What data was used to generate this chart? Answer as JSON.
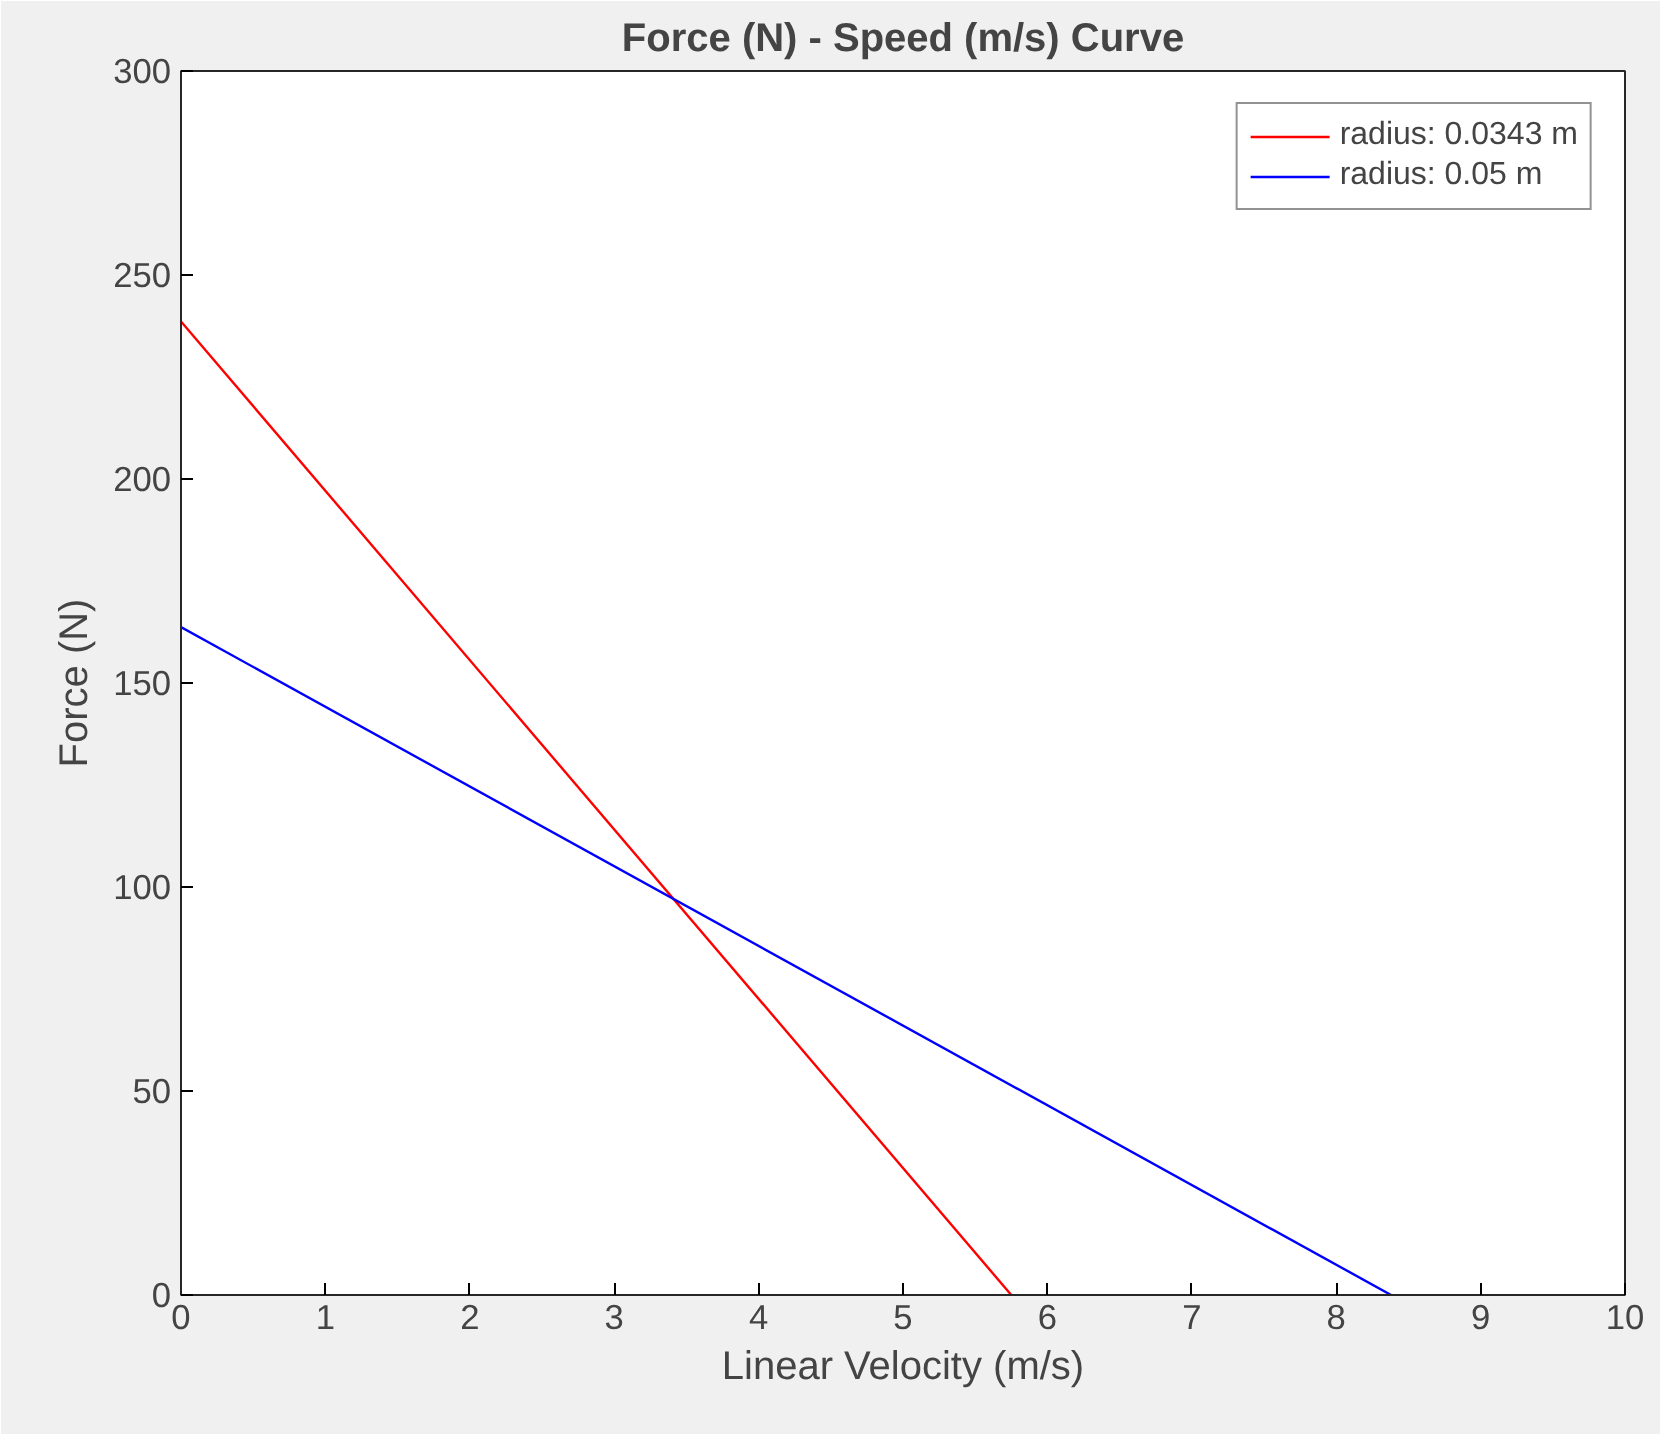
{
  "chart_data": {
    "type": "line",
    "title": "Force (N) - Speed (m/s) Curve",
    "xlabel": "Linear Velocity (m/s)",
    "ylabel": "Force (N)",
    "xlim": [
      0,
      10
    ],
    "ylim": [
      0,
      300
    ],
    "xticks": [
      0,
      1,
      2,
      3,
      4,
      5,
      6,
      7,
      8,
      9,
      10
    ],
    "yticks": [
      0,
      50,
      100,
      150,
      200,
      250,
      300
    ],
    "grid": false,
    "legend": "top right",
    "marker": "none",
    "line_style": "solid",
    "series": [
      {
        "name": "radius: 0.0343 m",
        "color": "#ff0000",
        "x": [
          0,
          5.75
        ],
        "values": [
          238.6,
          0
        ]
      },
      {
        "name": "radius: 0.05 m",
        "color": "#0000ff",
        "x": [
          0,
          8.38
        ],
        "values": [
          163.7,
          0
        ]
      }
    ]
  }
}
